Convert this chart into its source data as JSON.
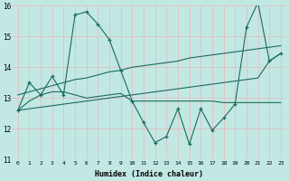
{
  "xlabel": "Humidex (Indice chaleur)",
  "x_ticks": [
    0,
    1,
    2,
    3,
    4,
    5,
    6,
    7,
    8,
    9,
    10,
    11,
    12,
    13,
    14,
    15,
    16,
    17,
    18,
    19,
    20,
    21,
    22,
    23
  ],
  "ylim": [
    11,
    16
  ],
  "yticks": [
    11,
    12,
    13,
    14,
    15,
    16
  ],
  "bg_color": "#c2e8e4",
  "grid_color": "#e8b8b8",
  "line_color": "#1a6b5a",
  "series_main": {
    "x": [
      0,
      1,
      2,
      3,
      4,
      5,
      6,
      7,
      8,
      9,
      10,
      11,
      12,
      13,
      14,
      15,
      16,
      17,
      18,
      19,
      20,
      21,
      22,
      23
    ],
    "y": [
      12.6,
      13.5,
      13.1,
      13.7,
      13.1,
      15.7,
      15.8,
      15.4,
      14.9,
      13.9,
      12.9,
      12.2,
      11.55,
      11.75,
      12.65,
      11.5,
      12.65,
      11.95,
      12.35,
      12.8,
      15.3,
      16.1,
      14.2,
      14.45
    ]
  },
  "series_upper": {
    "x": [
      0,
      1,
      2,
      3,
      4,
      5,
      6,
      7,
      8,
      9,
      10,
      11,
      12,
      13,
      14,
      15,
      16,
      17,
      18,
      19,
      20,
      21,
      22,
      23
    ],
    "y": [
      13.1,
      13.2,
      13.3,
      13.4,
      13.5,
      13.6,
      13.65,
      13.75,
      13.85,
      13.9,
      14.0,
      14.05,
      14.1,
      14.15,
      14.2,
      14.3,
      14.35,
      14.4,
      14.45,
      14.5,
      14.55,
      14.6,
      14.65,
      14.7
    ]
  },
  "series_lower": {
    "x": [
      0,
      1,
      2,
      3,
      4,
      5,
      6,
      7,
      8,
      9,
      10,
      11,
      12,
      13,
      14,
      15,
      16,
      17,
      18,
      19,
      20,
      21,
      22,
      23
    ],
    "y": [
      12.6,
      12.65,
      12.7,
      12.75,
      12.8,
      12.85,
      12.9,
      12.95,
      13.0,
      13.05,
      13.1,
      13.15,
      13.2,
      13.25,
      13.3,
      13.35,
      13.4,
      13.45,
      13.5,
      13.55,
      13.6,
      13.65,
      14.2,
      14.45
    ]
  },
  "series_flat": {
    "x": [
      0,
      1,
      2,
      3,
      4,
      5,
      6,
      7,
      8,
      9,
      10,
      11,
      12,
      13,
      14,
      15,
      16,
      17,
      18,
      19,
      20,
      21,
      22,
      23
    ],
    "y": [
      12.6,
      12.9,
      13.1,
      13.2,
      13.2,
      13.1,
      13.0,
      13.05,
      13.1,
      13.15,
      12.9,
      12.9,
      12.9,
      12.9,
      12.9,
      12.9,
      12.9,
      12.9,
      12.85,
      12.85,
      12.85,
      12.85,
      12.85,
      12.85
    ]
  }
}
